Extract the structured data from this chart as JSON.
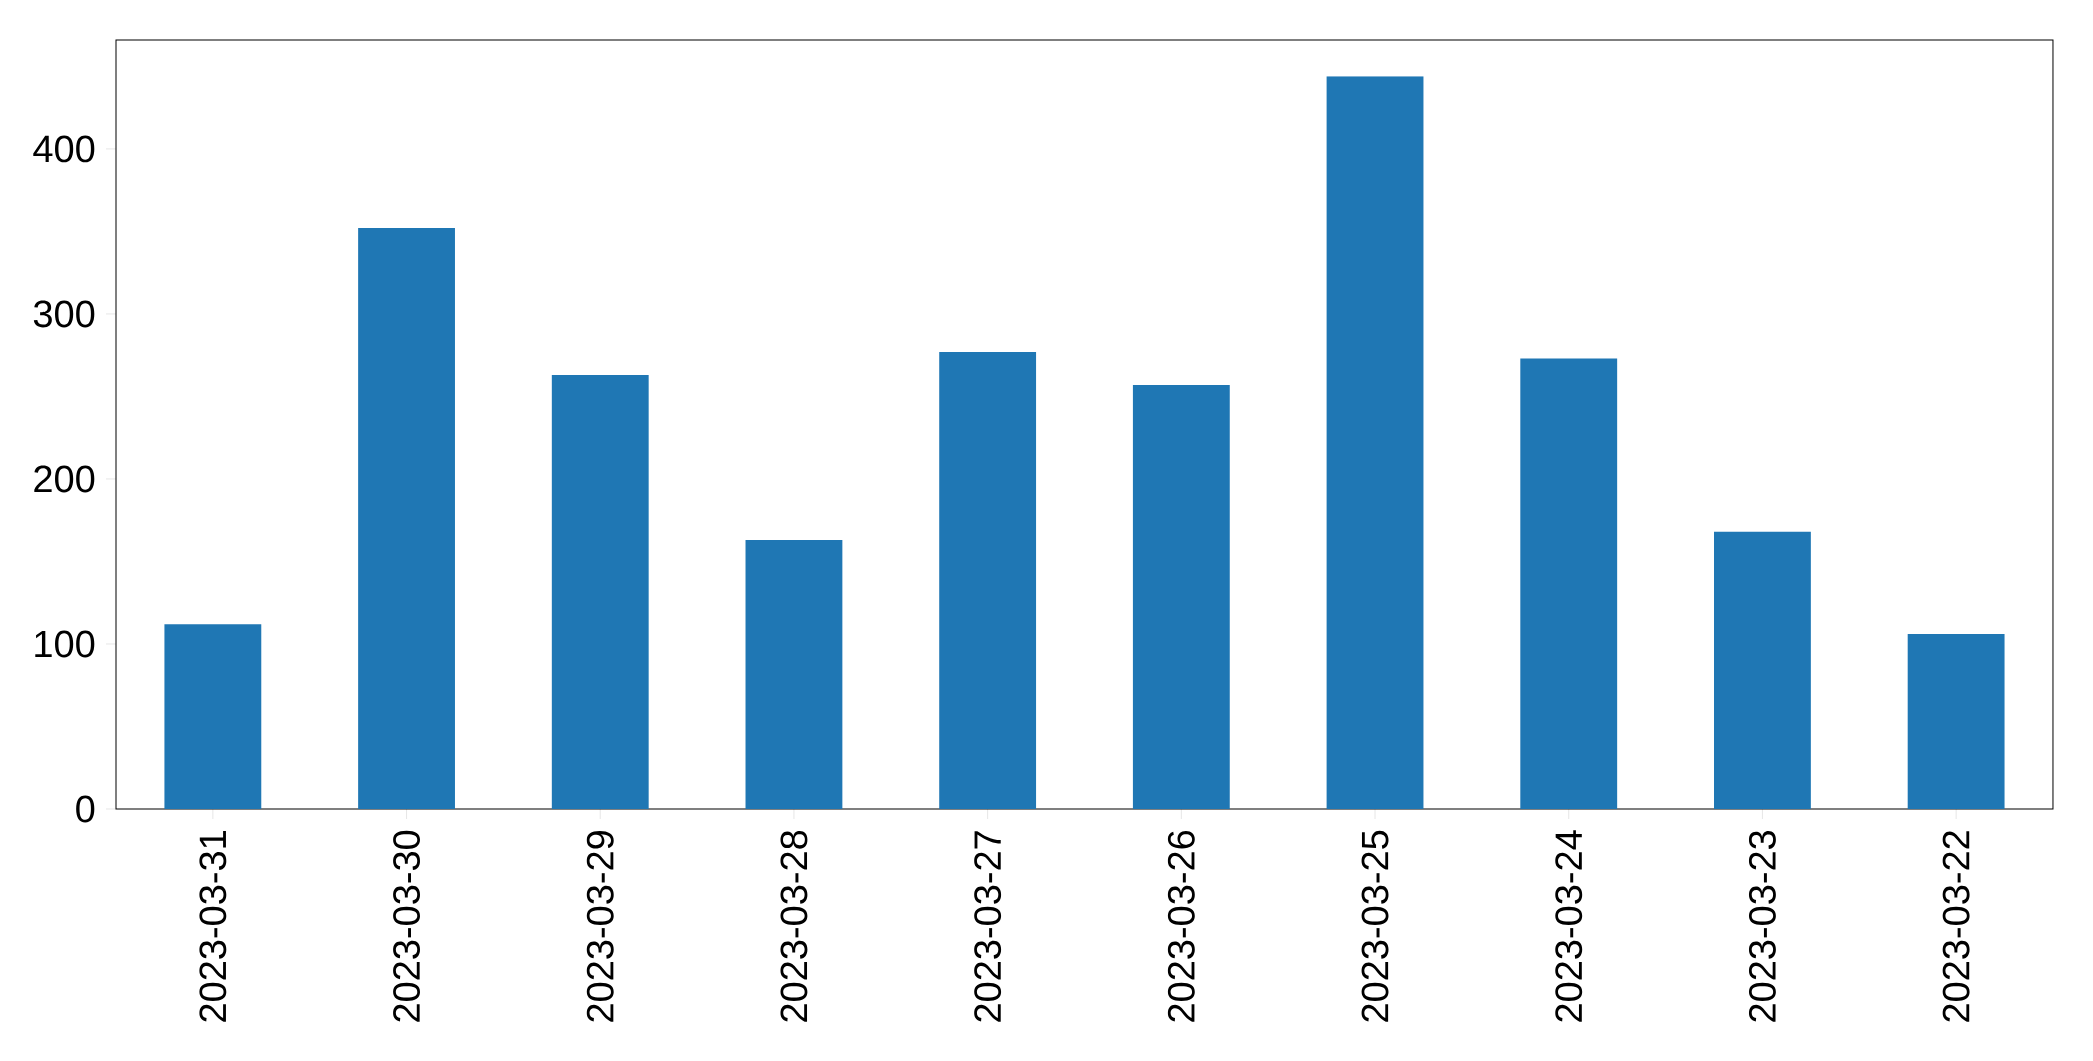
{
  "chart_data": {
    "type": "bar",
    "categories": [
      "2023-03-31",
      "2023-03-30",
      "2023-03-29",
      "2023-03-28",
      "2023-03-27",
      "2023-03-26",
      "2023-03-25",
      "2023-03-24",
      "2023-03-23",
      "2023-03-22"
    ],
    "values": [
      112,
      352,
      263,
      163,
      277,
      257,
      444,
      273,
      168,
      106
    ],
    "color": "#1f77b4",
    "ylim": [
      0,
      466
    ],
    "yticks": [
      0,
      100,
      200,
      300,
      400
    ]
  }
}
